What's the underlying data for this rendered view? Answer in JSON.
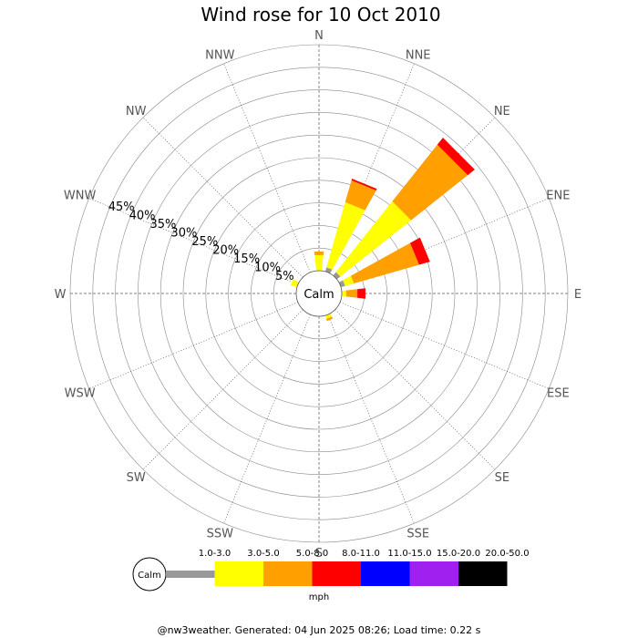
{
  "chart_data": {
    "type": "wind-rose",
    "title": "Wind rose for 10 Oct 2010",
    "directions": [
      "N",
      "NNE",
      "NE",
      "ENE",
      "E",
      "ESE",
      "SE",
      "SSE",
      "S",
      "SSW",
      "SW",
      "WSW",
      "W",
      "WNW",
      "NW",
      "NNW"
    ],
    "radial_ticks": [
      "5%",
      "10%",
      "15%",
      "20%",
      "25%",
      "30%",
      "35%",
      "40%",
      "45%"
    ],
    "radial_max": 50,
    "calm_label": "Calm",
    "speed_unit": "mph",
    "speed_bins": [
      {
        "label": "1.0-3.0",
        "color": "#999999"
      },
      {
        "label": "3.0-5.0",
        "color": "#ffff00"
      },
      {
        "label": "5.0-8.0",
        "color": "#ffa000"
      },
      {
        "label": "8.0-11.0",
        "color": "#ff0000"
      },
      {
        "label": "11.0-15.0",
        "color": "#0000ff"
      },
      {
        "label": "15.0-20.0",
        "color": "#a020f0"
      },
      {
        "label": "20.0-50.0",
        "color": "#000000"
      }
    ],
    "series": [
      {
        "direction": "N",
        "values": [
          0,
          3.5,
          0.8,
          0,
          0,
          0,
          0
        ]
      },
      {
        "direction": "NNE",
        "values": [
          1,
          15,
          5,
          0.4,
          0,
          0,
          0
        ]
      },
      {
        "direction": "NE",
        "values": [
          1,
          20,
          16,
          2,
          0,
          0,
          0
        ]
      },
      {
        "direction": "ENE",
        "values": [
          1,
          2,
          15,
          2.5,
          0,
          0,
          0
        ]
      },
      {
        "direction": "E",
        "values": [
          0,
          1,
          2.5,
          1.8,
          0,
          0,
          0
        ]
      },
      {
        "direction": "SSE",
        "values": [
          0,
          0.8,
          0.5,
          0,
          0,
          0,
          0
        ]
      },
      {
        "direction": "WNW",
        "values": [
          0,
          1.5,
          0,
          0,
          0,
          0,
          0
        ]
      }
    ]
  },
  "footer": "@nw3weather. Generated: 04 Jun 2025 08:26; Load time: 0.22 s"
}
